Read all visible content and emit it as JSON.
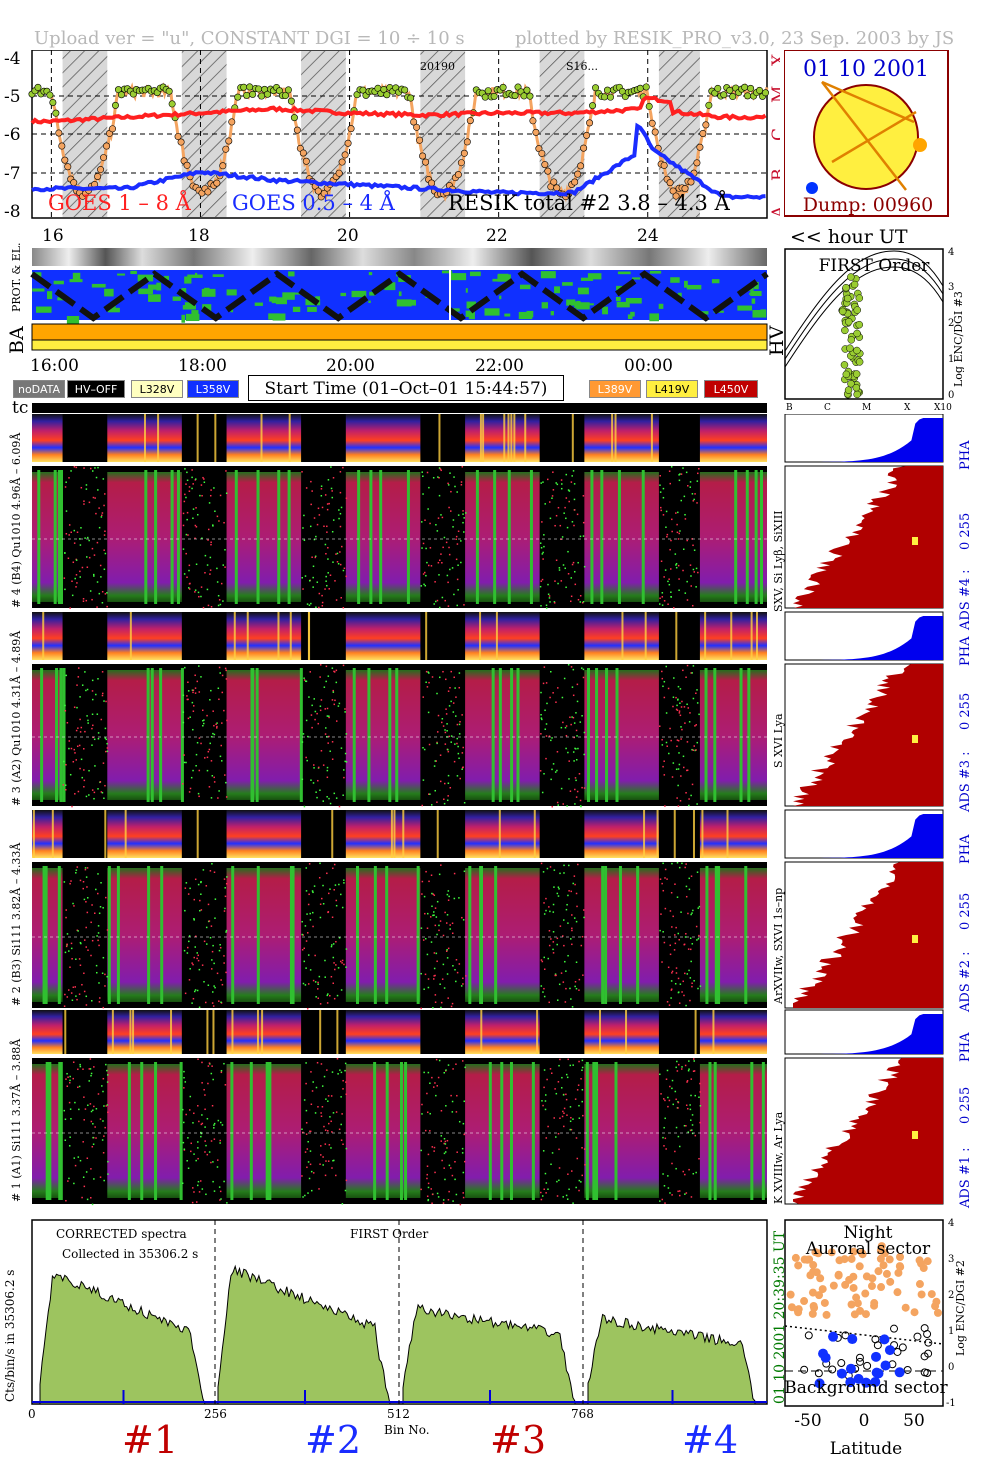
{
  "header": {
    "left": "Upload ver = \"u\", CONSTANT  DGI =  10 ÷  10 s",
    "right": "plotted by RESIK_PRO_v3.0, 23 Sep. 2003 by JS"
  },
  "goes_panel": {
    "y_ticks": [
      "-4",
      "-5",
      "-6",
      "-7",
      "-8"
    ],
    "class_labels": [
      "X",
      "M",
      "C",
      "B",
      "A"
    ],
    "legend_goes1": "GOES 1 – 8 Å",
    "legend_goes05": "GOES 0.5 – 4 Å",
    "legend_resik": "RESIK total #2  3.8 – 4.3 Å",
    "annotations": [
      "20190",
      "S16..."
    ],
    "colors": {
      "goes1": "#ff2020",
      "goes05": "#1a2cff",
      "resik": "#000000",
      "resik_fill": "#f4a460",
      "resik_dot": "#9acd32"
    }
  },
  "sun_panel": {
    "date": "01 10 2001",
    "dump": "Dump: 00960"
  },
  "hour_axis": {
    "top_labels": [
      "16",
      "18",
      "20",
      "22",
      "24"
    ],
    "unit": "<< hour UT",
    "bottom_labels": [
      "16:00",
      "18:00",
      "20:00",
      "22:00",
      "00:00"
    ]
  },
  "orbit_panel": {
    "label_prot": "PROT. & EL.",
    "label_ba": "BA",
    "label_hv": "HV"
  },
  "first_order": {
    "title": "FIRST Order",
    "y_ticks": [
      "4",
      "3",
      "2",
      "1",
      "0"
    ],
    "ylabel": "Log ENC/DGI #3",
    "x_ticks": [
      "B",
      "C",
      "M",
      "X",
      "X10"
    ]
  },
  "status_chips": {
    "nodata": "noDATA",
    "hvoff": "HV–OFF",
    "l328": "L328V",
    "l358": "L358V",
    "start_time": "Start Time (01–Oct–01 15:44:57)",
    "l389": "L389V",
    "l419": "L419V",
    "l450": "L450V",
    "tc": "tc"
  },
  "channels": [
    {
      "pha_label": "# 4 (B4)  Qu1010 4.96Å – 6.09Å",
      "lines": "SXV, Si Lyβ, SiXIII",
      "ads": "ADS #4 :",
      "range": "0 255",
      "pha": "PHA"
    },
    {
      "pha_label": "# 3 (A2)  Qu1010  4.31Å – 4.89Å",
      "lines": "S XVI Lya",
      "ads": "ADS #3 :",
      "range": "0 255",
      "pha": "PHA"
    },
    {
      "pha_label": "# 2 (B3)  Si111  3.82Å – 4.33Å",
      "lines": "ArXVIIw, SXVI 1s–np",
      "ads": "ADS #2 :",
      "range": "0 255",
      "pha": "PHA"
    },
    {
      "pha_label": "# 1 (A1)  Si111  3.37Å – 3.88Å",
      "lines": "K XVIIIw, Ar Lya",
      "ads": "ADS #1 :",
      "range": "0 255",
      "pha": "PHA"
    }
  ],
  "spectrum": {
    "ylabel": "Cts/bin/s in 35306.2 s",
    "note1": "CORRECTED spectra",
    "note2": "Collected in 35306.2 s",
    "order": "FIRST Order",
    "time_label": "01 10 2001     20:39:35 UT",
    "x_ticks": [
      "0",
      "256",
      "512",
      "768"
    ],
    "xlabel": "Bin No.",
    "channel_labels": [
      "#1",
      "#2",
      "#3",
      "#4"
    ],
    "colors": {
      "fill": "#9dc45f",
      "line": "#000000",
      "blue": "#0000dd"
    }
  },
  "latitude_panel": {
    "night": "Night",
    "auroral": "Auroral sector",
    "background": "Background sector",
    "x_ticks": [
      "-50",
      "0",
      "50"
    ],
    "xlabel": "Latitude",
    "y_ticks": [
      "4",
      "3",
      "2",
      "1",
      "0",
      "-1"
    ],
    "ylabel": "Log ENC/DGI #2"
  },
  "chart_data": {
    "type": "line",
    "title": "",
    "series": [
      {
        "name": "GOES 1 – 8 Å",
        "x": [
          16,
          17,
          18,
          19,
          20,
          21,
          22,
          23,
          24,
          25
        ],
        "values": [
          -5.7,
          -5.6,
          -5.5,
          -5.4,
          -5.5,
          -5.55,
          -5.5,
          -5.5,
          -5.4,
          -5.6
        ]
      },
      {
        "name": "GOES 0.5 – 4 Å",
        "x": [
          16,
          17,
          18,
          19,
          20,
          21,
          22,
          23,
          24,
          25
        ],
        "values": [
          -7.3,
          -7.3,
          -6.9,
          -7.1,
          -7.2,
          -7.3,
          -7.4,
          -7.4,
          -6.3,
          -7.5
        ]
      }
    ],
    "xlabel": "<< hour UT",
    "ylim": [
      -8,
      -4
    ]
  }
}
